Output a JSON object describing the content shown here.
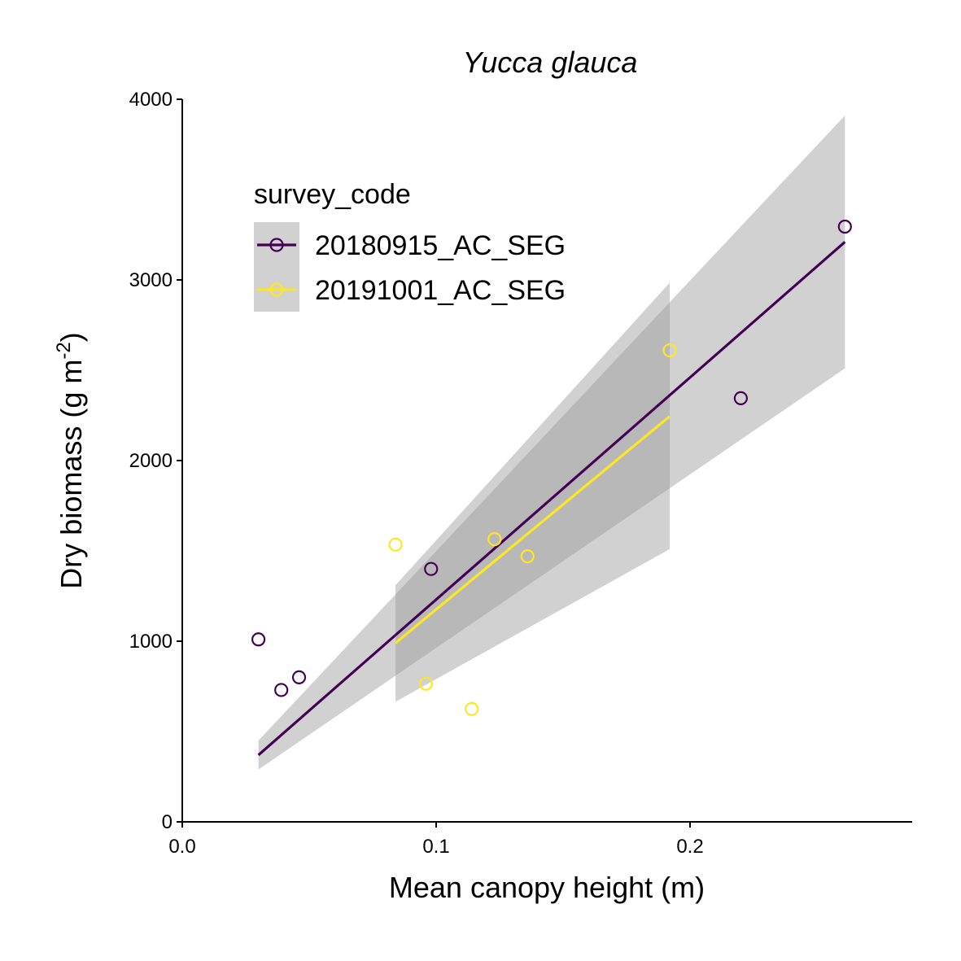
{
  "chart_data": {
    "type": "scatter",
    "title": "Yucca glauca",
    "xlabel": "Mean canopy height (m)",
    "ylabel_main": "Dry biomass (g m",
    "ylabel_sup": "-2",
    "ylabel_close": ")",
    "xlim": [
      0.0,
      0.2875
    ],
    "ylim": [
      0,
      4000
    ],
    "x_ticks": [
      0.0,
      0.1,
      0.2
    ],
    "x_tick_labels": [
      "0.0",
      "0.1",
      "0.2"
    ],
    "y_ticks": [
      0,
      1000,
      2000,
      3000,
      4000
    ],
    "y_tick_labels": [
      "0",
      "1000",
      "2000",
      "3000",
      "4000"
    ],
    "grid": false,
    "legend": {
      "title": "survey_code",
      "placement": "top-left"
    },
    "series": [
      {
        "name": "20180915_AC_SEG",
        "color": "#440154",
        "points": [
          {
            "x": 0.03,
            "y": 1010
          },
          {
            "x": 0.039,
            "y": 730
          },
          {
            "x": 0.046,
            "y": 800
          },
          {
            "x": 0.098,
            "y": 1400
          },
          {
            "x": 0.22,
            "y": 2345
          },
          {
            "x": 0.261,
            "y": 3295
          }
        ],
        "fit_line": [
          {
            "x": 0.03,
            "y": 370
          },
          {
            "x": 0.261,
            "y": 3210
          }
        ],
        "confidence_band": [
          {
            "x": 0.03,
            "lower": 290,
            "upper": 450
          },
          {
            "x": 0.261,
            "lower": 2510,
            "upper": 3910
          }
        ]
      },
      {
        "name": "20191001_AC_SEG",
        "color": "#FDE725",
        "points": [
          {
            "x": 0.084,
            "y": 1535
          },
          {
            "x": 0.096,
            "y": 765
          },
          {
            "x": 0.114,
            "y": 625
          },
          {
            "x": 0.123,
            "y": 1565
          },
          {
            "x": 0.136,
            "y": 1470
          },
          {
            "x": 0.192,
            "y": 2610
          }
        ],
        "fit_line": [
          {
            "x": 0.084,
            "y": 990
          },
          {
            "x": 0.192,
            "y": 2245
          }
        ],
        "confidence_band": [
          {
            "x": 0.084,
            "lower": 665,
            "upper": 1310
          },
          {
            "x": 0.192,
            "lower": 1510,
            "upper": 2985
          }
        ]
      }
    ]
  }
}
